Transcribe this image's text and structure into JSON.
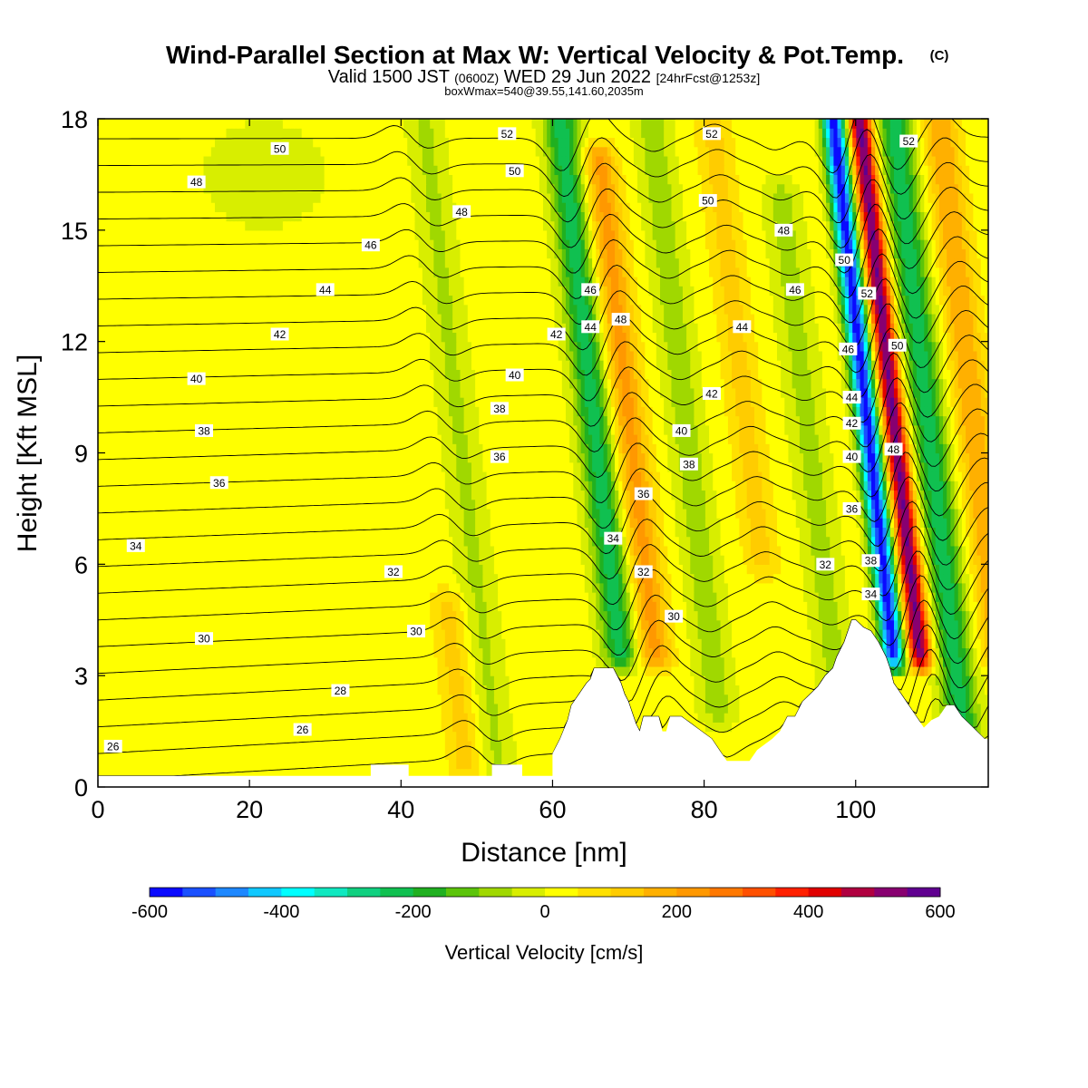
{
  "header": {
    "title": "Wind-Parallel Section at Max W: Vertical Velocity & Pot.Temp.",
    "copyright": "(C)",
    "valid_prefix": "Valid 1500 JST",
    "valid_utc": "(0600Z)",
    "valid_date": "WED 29 Jun 2022",
    "forecast": "[24hrFcst@1253z]",
    "box_info": "boxWmax=540@39.55,141.60,2035m"
  },
  "chart_data": {
    "type": "heatmap",
    "xlabel": "Distance [nm]",
    "ylabel": "Height [Kft MSL]",
    "xlim": [
      0,
      117.5
    ],
    "ylim": [
      0,
      18
    ],
    "x_ticks": [
      "0",
      "20",
      "40",
      "60",
      "80",
      "100"
    ],
    "x_tick_values": [
      0,
      20,
      40,
      60,
      80,
      100
    ],
    "y_ticks": [
      "0",
      "3",
      "6",
      "9",
      "12",
      "15",
      "18"
    ],
    "y_tick_values": [
      0,
      3,
      6,
      9,
      12,
      15,
      18
    ],
    "fill_variable": "vertical velocity (cm/s)",
    "contour_variable": "potential temperature",
    "colorbar": {
      "label": "Vertical Velocity [cm/s]",
      "tick_labels": [
        "-600",
        "-400",
        "-200",
        "0",
        "200",
        "400",
        "600"
      ],
      "tick_values": [
        -600,
        -400,
        -200,
        0,
        200,
        400,
        600
      ],
      "range": [
        -600,
        600
      ],
      "colors": [
        "#0a0aff",
        "#1a50ff",
        "#1e88ff",
        "#10c8ff",
        "#00ffff",
        "#10e8c0",
        "#10d080",
        "#10c050",
        "#20b020",
        "#5cc40a",
        "#a0d800",
        "#d8ee00",
        "#ffff00",
        "#ffe000",
        "#ffcc00",
        "#ffb000",
        "#ff9800",
        "#ff7800",
        "#ff5000",
        "#ff2000",
        "#e00000",
        "#b00040",
        "#880070",
        "#600090"
      ]
    },
    "updraft_bands": [
      {
        "x_center": 70.5,
        "w_peak": 200,
        "from": 3.5,
        "to": 17
      },
      {
        "x_center": 86,
        "w_peak": 100,
        "from": 6,
        "to": 18
      },
      {
        "x_center": 105.5,
        "w_peak": 540,
        "from": 3.5,
        "to": 18
      },
      {
        "x_center": 116,
        "w_peak": 180,
        "from": 3.5,
        "to": 18
      },
      {
        "x_center": 44,
        "w_peak": 100,
        "from": 0.5,
        "to": 5
      }
    ],
    "downdraft_bands": [
      {
        "x_center": 66,
        "w_peak": -250,
        "from": 3.5,
        "to": 18
      },
      {
        "x_center": 102,
        "w_peak": -600,
        "from": 3.5,
        "to": 18
      },
      {
        "x_center": 110,
        "w_peak": -250,
        "from": 1.5,
        "to": 18
      },
      {
        "x_center": 48,
        "w_peak": -80,
        "from": 0.5,
        "to": 18
      },
      {
        "x_center": 78,
        "w_peak": -100,
        "from": 2,
        "to": 18
      },
      {
        "x_center": 94,
        "w_peak": -90,
        "from": 2.5,
        "to": 16
      }
    ],
    "terrain": {
      "x": [
        0,
        36,
        36,
        41,
        41,
        52,
        52,
        56,
        56,
        60,
        60,
        61,
        62,
        62.5,
        63.5,
        64.5,
        65,
        65.5,
        68,
        68.5,
        69,
        69.5,
        70,
        70.5,
        71,
        71.5,
        72,
        74,
        74.5,
        75,
        75.5,
        77,
        79,
        81,
        82,
        83,
        86,
        87,
        89,
        90,
        91,
        92,
        93,
        94,
        95,
        96,
        97,
        97.5,
        98,
        98.5,
        99,
        99.5,
        100,
        101,
        102,
        103,
        104,
        104.5,
        105,
        106,
        107,
        108,
        109,
        110,
        111,
        112,
        113,
        114,
        115,
        116,
        117,
        117.5
      ],
      "y": [
        0.3,
        0.3,
        0.6,
        0.6,
        0.3,
        0.3,
        0.6,
        0.6,
        0.3,
        0.3,
        0.9,
        1.3,
        1.8,
        2.2,
        2.5,
        2.8,
        2.9,
        3.2,
        3.2,
        3.0,
        2.8,
        2.5,
        2.3,
        2.0,
        1.7,
        1.5,
        1.9,
        1.9,
        1.5,
        1.5,
        1.9,
        1.9,
        1.6,
        1.3,
        1.0,
        0.7,
        0.7,
        1.0,
        1.3,
        1.5,
        1.9,
        1.9,
        2.3,
        2.5,
        2.7,
        3.0,
        3.2,
        3.5,
        3.7,
        3.9,
        4.2,
        4.5,
        4.5,
        4.3,
        4.2,
        3.9,
        3.5,
        3.2,
        2.8,
        2.5,
        2.2,
        1.9,
        1.6,
        1.8,
        1.9,
        2.2,
        2.2,
        1.9,
        1.7,
        1.5,
        1.3,
        1.3
      ]
    },
    "contour_labels": [
      {
        "text": "26",
        "x": 2,
        "y": 1.1
      },
      {
        "text": "26",
        "x": 27,
        "y": 1.55
      },
      {
        "text": "28",
        "x": 32,
        "y": 2.6
      },
      {
        "text": "30",
        "x": 14,
        "y": 4.0
      },
      {
        "text": "30",
        "x": 42,
        "y": 4.2
      },
      {
        "text": "30",
        "x": 76,
        "y": 4.6
      },
      {
        "text": "32",
        "x": 39,
        "y": 5.8
      },
      {
        "text": "32",
        "x": 72,
        "y": 5.8
      },
      {
        "text": "32",
        "x": 96,
        "y": 6.0
      },
      {
        "text": "34",
        "x": 5,
        "y": 6.5
      },
      {
        "text": "34",
        "x": 68,
        "y": 6.7
      },
      {
        "text": "34",
        "x": 102,
        "y": 5.2
      },
      {
        "text": "36",
        "x": 16,
        "y": 8.2
      },
      {
        "text": "36",
        "x": 53,
        "y": 8.9
      },
      {
        "text": "36",
        "x": 72,
        "y": 7.9
      },
      {
        "text": "36",
        "x": 99.5,
        "y": 7.5
      },
      {
        "text": "38",
        "x": 14,
        "y": 9.6
      },
      {
        "text": "38",
        "x": 53,
        "y": 10.2
      },
      {
        "text": "38",
        "x": 78,
        "y": 8.7
      },
      {
        "text": "38",
        "x": 102,
        "y": 6.1
      },
      {
        "text": "40",
        "x": 13,
        "y": 11.0
      },
      {
        "text": "40",
        "x": 55,
        "y": 11.1
      },
      {
        "text": "40",
        "x": 77,
        "y": 9.6
      },
      {
        "text": "40",
        "x": 99.5,
        "y": 8.9
      },
      {
        "text": "42",
        "x": 24,
        "y": 12.2
      },
      {
        "text": "42",
        "x": 60.5,
        "y": 12.2
      },
      {
        "text": "42",
        "x": 81,
        "y": 10.6
      },
      {
        "text": "42",
        "x": 99.5,
        "y": 9.8
      },
      {
        "text": "44",
        "x": 30,
        "y": 13.4
      },
      {
        "text": "44",
        "x": 65,
        "y": 12.4
      },
      {
        "text": "44",
        "x": 85,
        "y": 12.4
      },
      {
        "text": "44",
        "x": 99.5,
        "y": 10.5
      },
      {
        "text": "46",
        "x": 36,
        "y": 14.6
      },
      {
        "text": "46",
        "x": 65,
        "y": 13.4
      },
      {
        "text": "46",
        "x": 92,
        "y": 13.4
      },
      {
        "text": "46",
        "x": 99,
        "y": 11.8
      },
      {
        "text": "48",
        "x": 13,
        "y": 16.3
      },
      {
        "text": "48",
        "x": 48,
        "y": 15.5
      },
      {
        "text": "48",
        "x": 69,
        "y": 12.6
      },
      {
        "text": "48",
        "x": 90.5,
        "y": 15.0
      },
      {
        "text": "48",
        "x": 105,
        "y": 9.1
      },
      {
        "text": "50",
        "x": 24,
        "y": 17.2
      },
      {
        "text": "50",
        "x": 55,
        "y": 16.6
      },
      {
        "text": "50",
        "x": 80.5,
        "y": 15.8
      },
      {
        "text": "50",
        "x": 98.5,
        "y": 14.2
      },
      {
        "text": "50",
        "x": 105.5,
        "y": 11.9
      },
      {
        "text": "52",
        "x": 54,
        "y": 17.6
      },
      {
        "text": "52",
        "x": 81,
        "y": 17.6
      },
      {
        "text": "52",
        "x": 101.5,
        "y": 13.3
      },
      {
        "text": "52",
        "x": 107,
        "y": 17.4
      }
    ]
  }
}
